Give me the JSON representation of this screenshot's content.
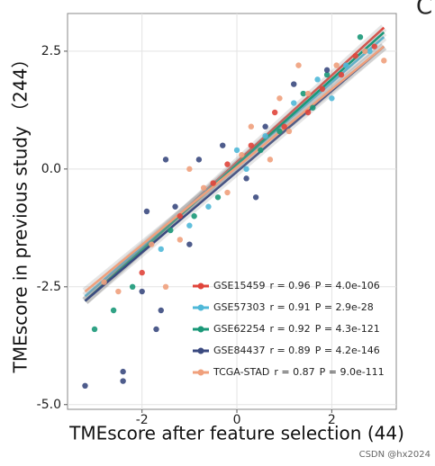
{
  "chart_data": {
    "type": "scatter",
    "panel_label": "C",
    "x_label": "TMEscore after feature selection (44)",
    "y_label": "TMEscore in previous study （244）",
    "watermark": "CSDN @hx2024",
    "xlim": [
      -3.57,
      3.36
    ],
    "ylim": [
      -5.1,
      3.3
    ],
    "xticks": [
      -2,
      0,
      2
    ],
    "yticks": [
      2.5,
      {
        "value": 0,
        "label": "0.0"
      },
      -2.5,
      {
        "value": -5,
        "label": "-5.0"
      }
    ],
    "grid": true,
    "series": [
      {
        "name": "GSE15459",
        "r": "r = 0.96",
        "p": "P = 4.0e-106",
        "color": "#e0453b",
        "x": [
          -1.2,
          -0.5,
          0.3,
          1.0,
          1.8,
          2.5,
          2.9,
          -2.0,
          0.8,
          -0.2,
          1.5,
          2.2
        ],
        "y": [
          -1.0,
          -0.3,
          0.5,
          0.9,
          1.7,
          2.4,
          2.6,
          -2.2,
          1.2,
          0.1,
          1.2,
          2.0
        ],
        "fit_x": [
          -3.2,
          3.1
        ],
        "fit_y": [
          -2.8,
          3.0
        ]
      },
      {
        "name": "GSE57303",
        "r": "r = 0.91",
        "p": "P = 2.9e-28",
        "color": "#4fb8d8",
        "x": [
          -1.0,
          0.2,
          1.2,
          2.3,
          2.8,
          -0.6,
          0.6,
          1.7,
          -1.6,
          0.0,
          2.0
        ],
        "y": [
          -1.2,
          0.0,
          1.4,
          2.2,
          2.5,
          -0.8,
          0.7,
          1.9,
          -1.7,
          0.4,
          1.5
        ],
        "fit_x": [
          -3.2,
          3.1
        ],
        "fit_y": [
          -2.7,
          2.8
        ]
      },
      {
        "name": "GSE62254",
        "r": "r = 0.92",
        "p": "P = 4.3e-121",
        "color": "#1a9878",
        "x": [
          -2.6,
          -3.0,
          -2.2,
          -1.4,
          -0.4,
          0.5,
          1.4,
          1.9,
          2.6,
          0.9,
          -0.9,
          1.6
        ],
        "y": [
          -3.0,
          -3.4,
          -2.5,
          -1.3,
          -0.6,
          0.4,
          1.6,
          2.0,
          2.8,
          0.8,
          -1.0,
          1.3
        ],
        "fit_x": [
          -3.2,
          3.1
        ],
        "fit_y": [
          -2.8,
          2.9
        ]
      },
      {
        "name": "GSE84437",
        "r": "r = 0.89",
        "p": "P = 4.2e-146",
        "color": "#3b4a80",
        "x": [
          -3.2,
          -2.4,
          -2.4,
          -1.6,
          -1.7,
          -2.0,
          -1.3,
          -1.5,
          -0.8,
          -0.3,
          0.2,
          -1.0,
          0.6,
          1.2,
          1.9,
          0.4,
          -1.9
        ],
        "y": [
          -4.6,
          -4.3,
          -4.5,
          -3.0,
          -3.4,
          -2.6,
          -0.8,
          0.2,
          0.2,
          0.5,
          -0.2,
          -1.6,
          0.9,
          1.8,
          2.1,
          -0.6,
          -0.9
        ],
        "fit_x": [
          -3.2,
          3.1
        ],
        "fit_y": [
          -2.8,
          2.6
        ]
      },
      {
        "name": "TCGA-STAD",
        "r": "r = 0.87",
        "p": "P = 9.0e-111",
        "color": "#f0a07c",
        "x": [
          -2.5,
          -1.8,
          -1.2,
          -0.7,
          -0.2,
          0.3,
          0.7,
          1.1,
          1.5,
          2.1,
          2.7,
          3.1,
          -1.0,
          0.1,
          -2.8,
          1.3,
          -1.5,
          0.9
        ],
        "y": [
          -2.6,
          -1.6,
          -1.5,
          -0.4,
          -0.5,
          0.9,
          0.2,
          0.8,
          1.6,
          2.2,
          2.5,
          2.3,
          0.0,
          0.3,
          -2.4,
          2.2,
          -2.5,
          1.5
        ],
        "fit_x": [
          -3.2,
          3.1
        ],
        "fit_y": [
          -2.6,
          2.6
        ]
      }
    ]
  }
}
